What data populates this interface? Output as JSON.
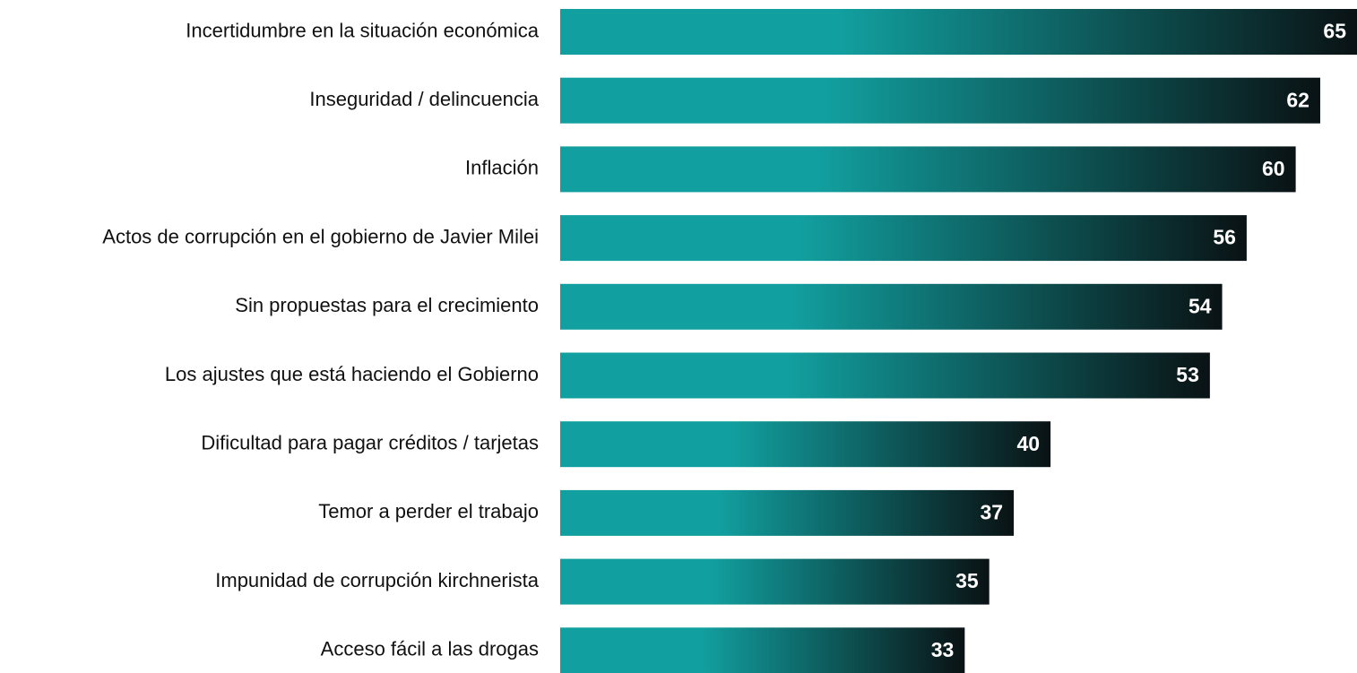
{
  "chart_data": {
    "type": "bar",
    "orientation": "horizontal",
    "categories": [
      "Incertidumbre en la situación económica",
      "Inseguridad / delincuencia",
      "Inflación",
      "Actos de corrupción en el gobierno de Javier Milei",
      "Sin propuestas para el crecimiento",
      "Los ajustes que está haciendo el Gobierno",
      "Dificultad para pagar créditos / tarjetas",
      "Temor a perder el trabajo",
      "Impunidad de corrupción kirchnerista",
      "Acceso fácil a las drogas"
    ],
    "values": [
      65,
      62,
      60,
      56,
      54,
      53,
      40,
      37,
      35,
      33
    ],
    "color": "#129f9f",
    "gradient_end": "#0a1214",
    "xlim": [
      0,
      65
    ]
  }
}
